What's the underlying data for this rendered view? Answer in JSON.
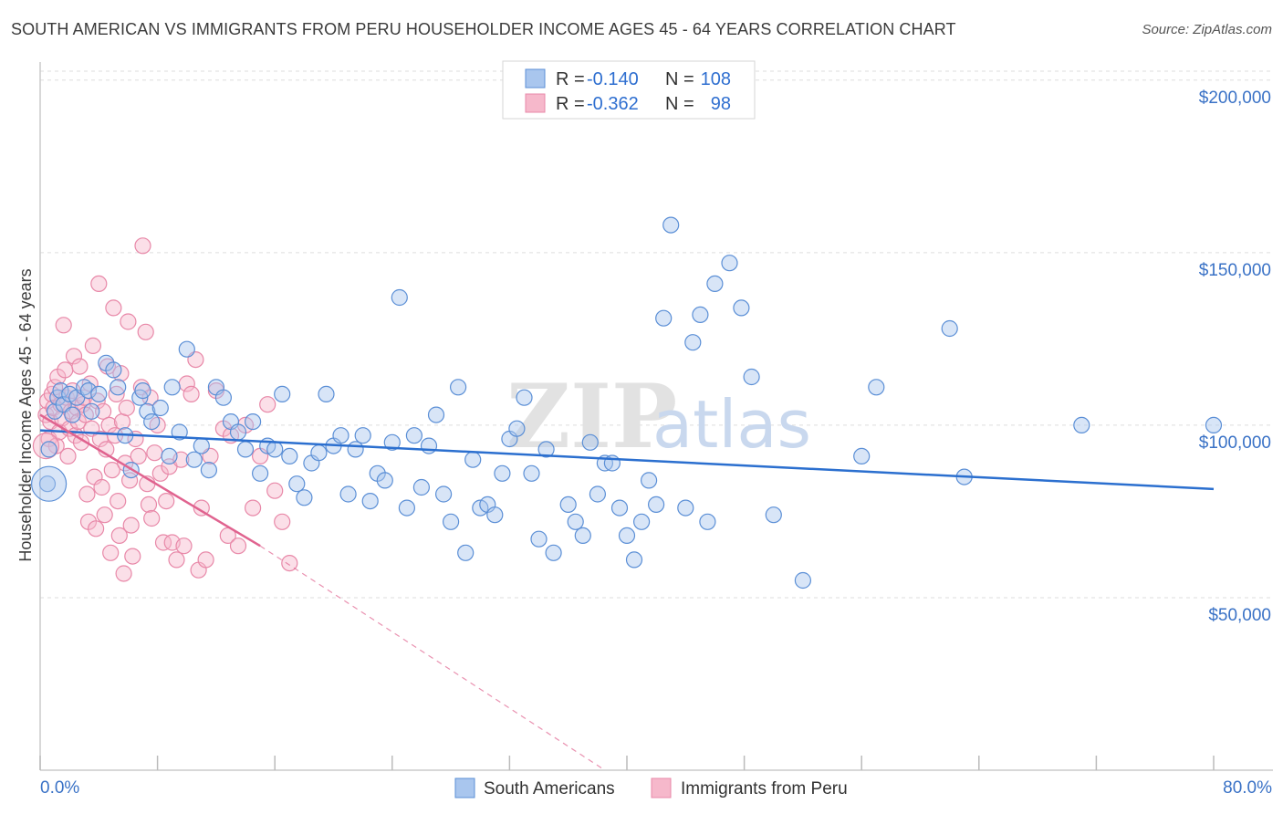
{
  "title": "SOUTH AMERICAN VS IMMIGRANTS FROM PERU HOUSEHOLDER INCOME AGES 45 - 64 YEARS CORRELATION CHART",
  "source": "Source: ZipAtlas.com",
  "watermark": {
    "zip": "ZIP",
    "atlas": "atlas"
  },
  "colors": {
    "blue_fill": "#a9c6ee",
    "blue_stroke": "#5b8fd6",
    "blue_line": "#2b6fcf",
    "pink_fill": "#f6b8cb",
    "pink_stroke": "#e888a8",
    "pink_line": "#e0638f",
    "tick_text": "#3a72c6",
    "grid": "#dddddd"
  },
  "legend": {
    "rows": [
      {
        "r_label": "R = ",
        "r_value": "-0.140",
        "n_label": "N = ",
        "n_value": "108"
      },
      {
        "r_label": "R = ",
        "r_value": "-0.362",
        "n_label": "N = ",
        "n_value": "98"
      }
    ]
  },
  "bottom_legend": [
    "South Americans",
    "Immigrants from Peru"
  ],
  "chart_data": {
    "type": "scatter",
    "xlabel": "",
    "ylabel": "Householder Income Ages 45 - 64 years",
    "xlim": [
      0,
      80
    ],
    "ylim": [
      0,
      210000
    ],
    "x_tick_labels": [
      "0.0%",
      "80.0%"
    ],
    "y_ticks": [
      50000,
      100000,
      150000,
      200000
    ],
    "y_tick_labels": [
      "$50,000",
      "$100,000",
      "$150,000",
      "$200,000"
    ],
    "grid": "horizontal dashed",
    "legend_position": "top-center",
    "series": [
      {
        "name": "South Americans",
        "r": -0.14,
        "n": 108,
        "trend": {
          "x": [
            0,
            80
          ],
          "y": [
            98500,
            81500
          ],
          "style": "solid"
        },
        "points": [
          [
            0.5,
            83000
          ],
          [
            0.6,
            93000
          ],
          [
            1,
            104000
          ],
          [
            1.2,
            108000
          ],
          [
            1.4,
            110000
          ],
          [
            1.6,
            106000
          ],
          [
            2,
            109000
          ],
          [
            2.2,
            103000
          ],
          [
            2.5,
            108000
          ],
          [
            3,
            111000
          ],
          [
            3.3,
            110000
          ],
          [
            3.5,
            104000
          ],
          [
            4,
            109000
          ],
          [
            4.5,
            118000
          ],
          [
            5,
            116000
          ],
          [
            5.3,
            111000
          ],
          [
            5.8,
            97000
          ],
          [
            6.2,
            87000
          ],
          [
            6.8,
            108000
          ],
          [
            7,
            110000
          ],
          [
            7.3,
            104000
          ],
          [
            7.6,
            101000
          ],
          [
            8.2,
            105000
          ],
          [
            8.8,
            91000
          ],
          [
            9,
            111000
          ],
          [
            9.5,
            98000
          ],
          [
            10,
            122000
          ],
          [
            10.5,
            90000
          ],
          [
            11,
            94000
          ],
          [
            11.5,
            87000
          ],
          [
            12,
            111000
          ],
          [
            12.5,
            108000
          ],
          [
            13,
            101000
          ],
          [
            13.5,
            98000
          ],
          [
            14,
            93000
          ],
          [
            14.5,
            101000
          ],
          [
            15,
            86000
          ],
          [
            15.5,
            94000
          ],
          [
            16,
            93000
          ],
          [
            16.5,
            109000
          ],
          [
            17,
            91000
          ],
          [
            17.5,
            83000
          ],
          [
            18,
            79000
          ],
          [
            18.5,
            89000
          ],
          [
            19,
            92000
          ],
          [
            19.5,
            109000
          ],
          [
            20,
            94000
          ],
          [
            20.5,
            97000
          ],
          [
            21,
            80000
          ],
          [
            21.5,
            93000
          ],
          [
            22,
            97000
          ],
          [
            22.5,
            78000
          ],
          [
            23,
            86000
          ],
          [
            23.5,
            84000
          ],
          [
            24,
            95000
          ],
          [
            24.5,
            137000
          ],
          [
            25,
            76000
          ],
          [
            25.5,
            97000
          ],
          [
            26,
            82000
          ],
          [
            26.5,
            94000
          ],
          [
            27,
            103000
          ],
          [
            27.5,
            80000
          ],
          [
            28,
            72000
          ],
          [
            28.5,
            111000
          ],
          [
            29,
            63000
          ],
          [
            29.5,
            90000
          ],
          [
            30,
            76000
          ],
          [
            30.5,
            77000
          ],
          [
            31,
            74000
          ],
          [
            31.5,
            86000
          ],
          [
            32,
            96000
          ],
          [
            32.5,
            99000
          ],
          [
            33,
            108000
          ],
          [
            33.5,
            86000
          ],
          [
            34,
            67000
          ],
          [
            34.5,
            93000
          ],
          [
            35,
            63000
          ],
          [
            36,
            77000
          ],
          [
            36.5,
            72000
          ],
          [
            37,
            68000
          ],
          [
            37.5,
            95000
          ],
          [
            38,
            80000
          ],
          [
            38.5,
            89000
          ],
          [
            39,
            89000
          ],
          [
            39.5,
            76000
          ],
          [
            40,
            68000
          ],
          [
            40.5,
            61000
          ],
          [
            41,
            72000
          ],
          [
            41.5,
            84000
          ],
          [
            42,
            77000
          ],
          [
            42.5,
            131000
          ],
          [
            43,
            158000
          ],
          [
            44,
            76000
          ],
          [
            44.5,
            124000
          ],
          [
            45,
            132000
          ],
          [
            45.5,
            72000
          ],
          [
            46,
            141000
          ],
          [
            47,
            147000
          ],
          [
            47.8,
            134000
          ],
          [
            48.5,
            114000
          ],
          [
            50,
            74000
          ],
          [
            52,
            55000
          ],
          [
            56,
            91000
          ],
          [
            57,
            111000
          ],
          [
            62,
            128000
          ],
          [
            63,
            85000
          ],
          [
            71,
            100000
          ],
          [
            80,
            100000
          ]
        ]
      },
      {
        "name": "Immigrants from Peru",
        "r": -0.362,
        "n": 98,
        "trend": {
          "x": [
            0,
            15
          ],
          "y": [
            103000,
            65000
          ],
          "style": "solid",
          "extension_x": [
            15,
            38.5
          ],
          "extension_y": [
            65000,
            0
          ],
          "extension_style": "dashed"
        },
        "points": [
          [
            0.4,
            103000
          ],
          [
            0.5,
            107000
          ],
          [
            0.6,
            96000
          ],
          [
            0.7,
            101000
          ],
          [
            0.8,
            109000
          ],
          [
            0.9,
            105000
          ],
          [
            1,
            111000
          ],
          [
            1.1,
            94000
          ],
          [
            1.2,
            114000
          ],
          [
            1.3,
            98000
          ],
          [
            1.4,
            106000
          ],
          [
            1.5,
            102000
          ],
          [
            1.6,
            129000
          ],
          [
            1.7,
            116000
          ],
          [
            1.8,
            108000
          ],
          [
            1.9,
            91000
          ],
          [
            2,
            99000
          ],
          [
            2.1,
            104000
          ],
          [
            2.2,
            110000
          ],
          [
            2.3,
            120000
          ],
          [
            2.4,
            97000
          ],
          [
            2.5,
            105000
          ],
          [
            2.6,
            101000
          ],
          [
            2.7,
            117000
          ],
          [
            2.8,
            95000
          ],
          [
            2.9,
            106000
          ],
          [
            3,
            108000
          ],
          [
            3.1,
            103000
          ],
          [
            3.2,
            80000
          ],
          [
            3.3,
            72000
          ],
          [
            3.4,
            112000
          ],
          [
            3.5,
            99000
          ],
          [
            3.6,
            123000
          ],
          [
            3.7,
            85000
          ],
          [
            3.8,
            70000
          ],
          [
            3.9,
            107000
          ],
          [
            4,
            141000
          ],
          [
            4.1,
            96000
          ],
          [
            4.2,
            82000
          ],
          [
            4.3,
            104000
          ],
          [
            4.4,
            74000
          ],
          [
            4.5,
            93000
          ],
          [
            4.6,
            117000
          ],
          [
            4.7,
            100000
          ],
          [
            4.8,
            63000
          ],
          [
            4.9,
            87000
          ],
          [
            5,
            134000
          ],
          [
            5.1,
            97000
          ],
          [
            5.2,
            109000
          ],
          [
            5.3,
            78000
          ],
          [
            5.4,
            68000
          ],
          [
            5.5,
            115000
          ],
          [
            5.6,
            101000
          ],
          [
            5.7,
            57000
          ],
          [
            5.8,
            89000
          ],
          [
            5.9,
            105000
          ],
          [
            6,
            130000
          ],
          [
            6.1,
            84000
          ],
          [
            6.2,
            71000
          ],
          [
            6.3,
            62000
          ],
          [
            6.5,
            96000
          ],
          [
            6.7,
            91000
          ],
          [
            6.9,
            111000
          ],
          [
            7,
            152000
          ],
          [
            7.2,
            127000
          ],
          [
            7.3,
            83000
          ],
          [
            7.4,
            77000
          ],
          [
            7.5,
            108000
          ],
          [
            7.6,
            73000
          ],
          [
            7.8,
            92000
          ],
          [
            8,
            100000
          ],
          [
            8.2,
            86000
          ],
          [
            8.4,
            66000
          ],
          [
            8.6,
            78000
          ],
          [
            8.8,
            88000
          ],
          [
            9,
            66000
          ],
          [
            9.3,
            61000
          ],
          [
            9.6,
            90000
          ],
          [
            9.8,
            65000
          ],
          [
            10,
            112000
          ],
          [
            10.3,
            109000
          ],
          [
            10.6,
            119000
          ],
          [
            10.8,
            58000
          ],
          [
            11,
            76000
          ],
          [
            11.3,
            61000
          ],
          [
            11.6,
            91000
          ],
          [
            12,
            110000
          ],
          [
            12.5,
            99000
          ],
          [
            12.8,
            68000
          ],
          [
            13,
            97000
          ],
          [
            13.5,
            65000
          ],
          [
            14,
            100000
          ],
          [
            14.5,
            76000
          ],
          [
            15,
            91000
          ],
          [
            15.5,
            106000
          ],
          [
            16,
            81000
          ],
          [
            16.5,
            72000
          ],
          [
            17,
            60000
          ]
        ]
      }
    ]
  }
}
